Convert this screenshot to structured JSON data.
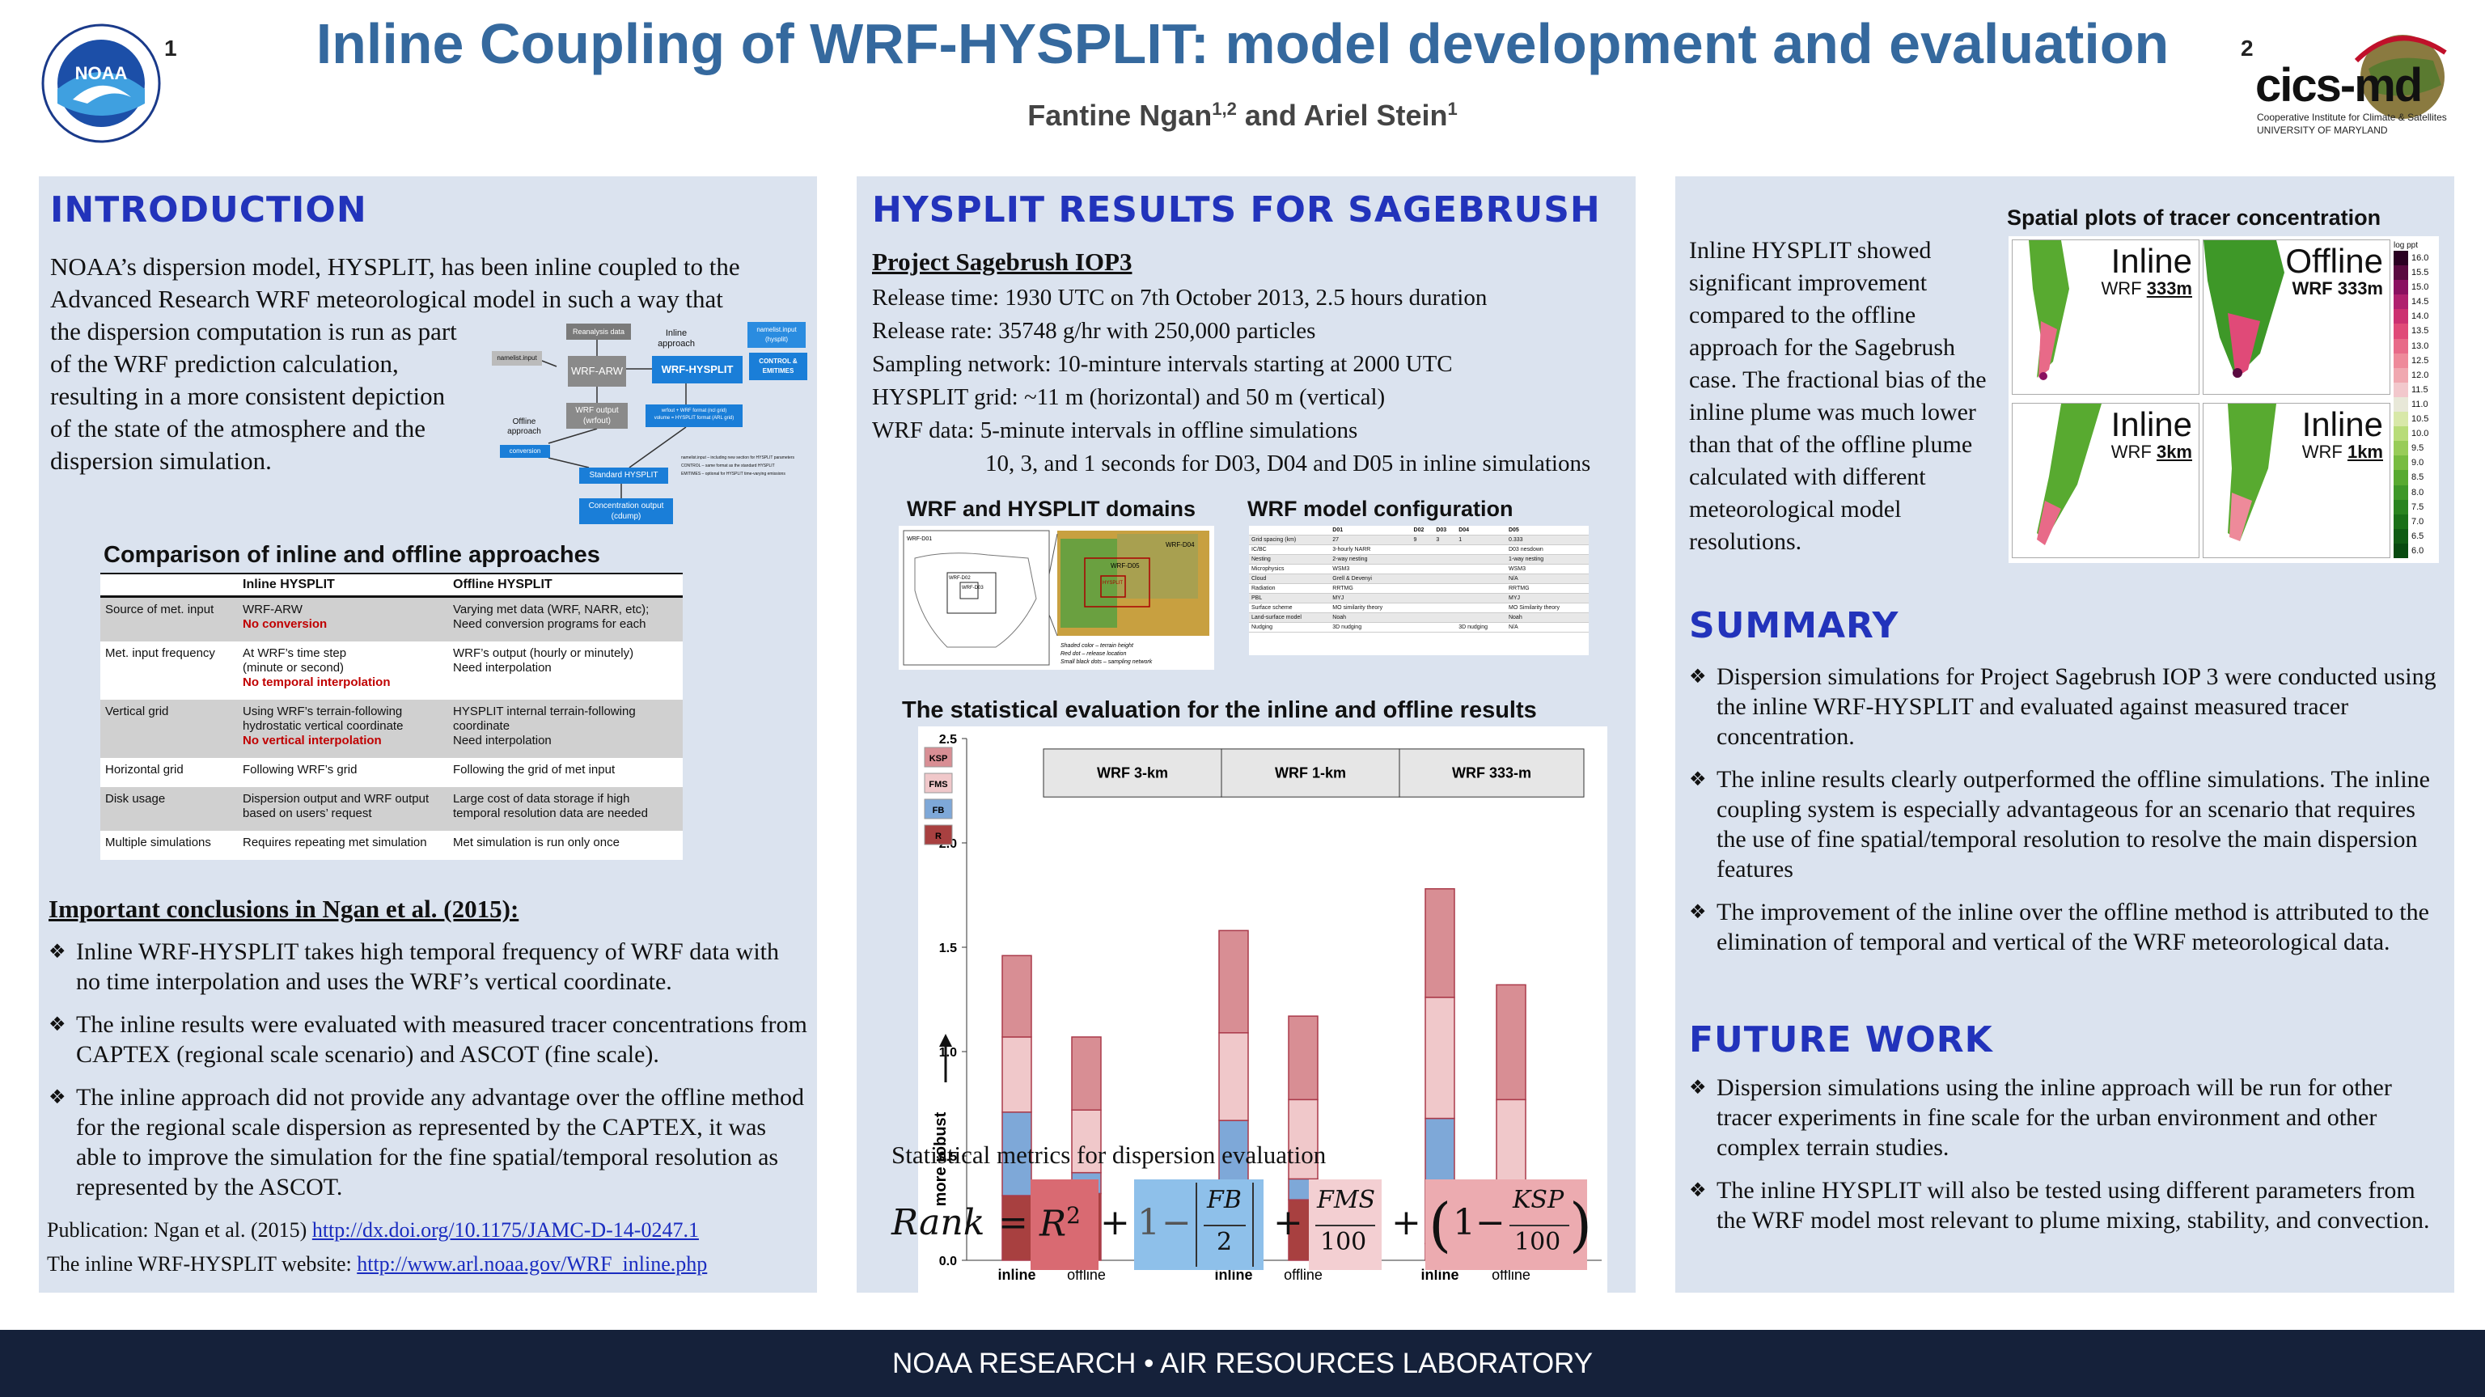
{
  "header": {
    "title": "Inline Coupling of WRF-HYSPLIT: model development and evaluation",
    "author1": "Fantine Ngan",
    "author1_sup": "1,2",
    "and": " and ",
    "author2": "Ariel Stein",
    "author2_sup": "1",
    "aff_left": "1",
    "aff_right": "2",
    "noaa_logo_text": "NOAA",
    "noaa_ring_text": "NATIONAL OCEANIC AND ATMOSPHERIC ADMINISTRATION · U.S. DEPARTMENT OF COMMERCE",
    "cics_name": "cics-md",
    "cics_line1": "Cooperative Institute for Climate & Satellites",
    "cics_line2": "UNIVERSITY OF MARYLAND"
  },
  "intro": {
    "heading": "INTRODUCTION",
    "para_full": "NOAA’s dispersion model, HYSPLIT, has been inline coupled to the Advanced Research WRF meteorological model in such a way that",
    "para_l1": "the dispersion computation is run as part",
    "para_l2": "of the WRF prediction calculation,",
    "para_l3": "resulting in a more consistent depiction",
    "para_l4": "of the state of the atmosphere and the",
    "para_l5": "dispersion simulation.",
    "diagram": {
      "reanalysis": "Reanalysis data",
      "namelist": "namelist.input",
      "wrf_arw": "WRF-ARW",
      "inline_label": "Inline\napproach",
      "namelist_hysplit": "namelist.input\n(hysplit)",
      "wrf_hysplit": "WRF-HYSPLIT",
      "control_emit": "CONTROL &\nEMITIMES",
      "wrf_output": "WRF output\n(wrfout)",
      "offline_label": "Offline\napproach",
      "conversion": "conversion",
      "arlout": "wrfout + WRF format (ncl grid)\nvolume = HYSPLIT format (ARL grid)",
      "standard": "Standard HYSPLIT",
      "concentration": "Concentration output\n(cdump)",
      "note1": "namelist.input – including new section for HYSPLIT parameters",
      "note2": "CONTROL – same format as the standard HYSPLIT",
      "note3": "EMITIMES – optional for HYSPLIT time-varying emissions"
    },
    "table_title": "Comparison of inline and offline approaches",
    "table_headers": [
      "",
      "Inline HYSPLIT",
      "Offline HYSPLIT"
    ],
    "table_rows": [
      {
        "k": "Source of met. input",
        "i1": "WRF-ARW",
        "i2": "No conversion",
        "o1": "Varying met data (WRF, NARR, etc);",
        "o2": "Need conversion programs for each"
      },
      {
        "k": "Met. input frequency",
        "i1": "At WRF’s time step",
        "i1b": "(minute or second)",
        "i2": "No temporal interpolation",
        "o1": "WRF’s output (hourly or minutely)",
        "o2": "Need interpolation"
      },
      {
        "k": "Vertical grid",
        "i1": "Using WRF’s terrain-following",
        "i1b": "hydrostatic vertical coordinate",
        "i2": "No vertical interpolation",
        "o1": "HYSPLIT internal terrain-following",
        "o1b": "coordinate",
        "o2": "Need interpolation"
      },
      {
        "k": "Horizontal grid",
        "i1": "Following WRF’s grid",
        "o1": "Following the grid of met input"
      },
      {
        "k": "Disk usage",
        "i1": "Dispersion output and WRF output",
        "i1b": "based on users’ request",
        "o1": "Large cost of data storage if high",
        "o1b": "temporal resolution data are needed"
      },
      {
        "k": "Multiple simulations",
        "i1": "Requires repeating met simulation",
        "o1": "Met simulation is run only once"
      }
    ],
    "conclusions_title": "Important conclusions in Ngan et al. (2015):",
    "conclusions": [
      "Inline WRF-HYSPLIT takes high temporal frequency of WRF data with no time interpolation and uses the WRF’s vertical coordinate.",
      "The inline results were evaluated with measured tracer concentrations from CAPTEX (regional scale scenario) and ASCOT (fine scale).",
      "The inline approach did not provide any advantage over the offline method for the regional scale dispersion as represented by the CAPTEX, it was able to improve the simulation for the fine spatial/temporal resolution as represented by the ASCOT."
    ],
    "pub_label": "Publication: Ngan et al. (2015) ",
    "pub_link": "http://dx.doi.org/10.1175/JAMC-D-14-0247.1",
    "web_label": "The inline WRF-HYSPLIT  website: ",
    "web_link": "http://www.arl.noaa.gov/WRF_inline.php"
  },
  "results": {
    "heading": "HYSPLIT RESULTS FOR SAGEBRUSH",
    "project": "Project Sagebrush IOP3",
    "lines": [
      "Release time: 1930 UTC on 7th October 2013, 2.5 hours duration",
      "Release rate: 35748 g/hr with 250,000 particles",
      "Sampling network: 10-minture intervals starting at 2000 UTC",
      "HYSPLIT grid: ~11 m (horizontal) and 50 m (vertical)",
      "WRF data: 5-minute intervals in offline simulations",
      "10, 3, and 1 seconds for D03, D04 and D05 in inline simulations"
    ],
    "domains_title": "WRF and HYSPLIT domains",
    "config_title": "WRF model configuration",
    "domain_labels": {
      "d01": "WRF-D01",
      "d02": "WRF-D02",
      "d03": "WRF-D03",
      "d04": "WRF-D04",
      "d05": "WRF-D05",
      "hys": "HYSPLIT"
    },
    "domain_legend": [
      "Shaded color – terrain height",
      "Red dot – release location",
      "Small black dots – sampling network"
    ],
    "config_headers": [
      "",
      "D01",
      "D02",
      "D03",
      "D04",
      "D05"
    ],
    "config_rows": [
      [
        "Grid spacing (km)",
        "27",
        "9",
        "3",
        "1",
        "0.333"
      ],
      [
        "IC/BC",
        "3-hourly NARR",
        "",
        "",
        "",
        "D03 nesdown"
      ],
      [
        "Nesting",
        "2-way nesting",
        "",
        "",
        "",
        "1-way nesting"
      ],
      [
        "Microphysics",
        "WSM3",
        "",
        "",
        "",
        "WSM3"
      ],
      [
        "Cloud",
        "Grell & Devenyi",
        "",
        "",
        "",
        "N/A"
      ],
      [
        "Radiation",
        "RRTMG",
        "",
        "",
        "",
        "RRTMG"
      ],
      [
        "PBL",
        "MYJ",
        "",
        "",
        "",
        "MYJ"
      ],
      [
        "Surface scheme",
        "MO similarity theory",
        "",
        "",
        "",
        "MO Similarity theory"
      ],
      [
        "Land-surface model",
        "Noah",
        "",
        "",
        "",
        "Noah"
      ],
      [
        "Nudging",
        "3D nudging",
        "",
        "",
        "3D nudging",
        "N/A"
      ]
    ],
    "stat_title": "The statistical evaluation for the inline and offline results",
    "metrics_title": "Statistical metrics for dispersion evaluation",
    "formula": {
      "rank": "Rank",
      "eq": "=",
      "r2": "R",
      "r2sup": "2",
      "plus": "+",
      "one": "1",
      "minus": "−",
      "fb": "FB",
      "two": "2",
      "fms": "FMS",
      "hundred": "100",
      "ksp": "KSP",
      "lparen": "(",
      "rparen": ")"
    }
  },
  "chart_data": {
    "type": "bar",
    "stacked": true,
    "groups": [
      "WRF 3-km",
      "WRF 1-km",
      "WRF 333-m"
    ],
    "categories": [
      "inline",
      "offline",
      "inline",
      "offline",
      "inline",
      "offline"
    ],
    "ylim": [
      0,
      2.5
    ],
    "yticks": [
      "0.0",
      "0.5",
      "1.0",
      "1.5",
      "2.0",
      "2.5"
    ],
    "ylabel": "more robust",
    "series": [
      {
        "name": "R",
        "color": "#a84040",
        "values": [
          0.31,
          0.32,
          0.23,
          0.29,
          0.08,
          0.15
        ]
      },
      {
        "name": "FB",
        "color": "#7ea8d8",
        "values": [
          0.4,
          0.1,
          0.44,
          0.1,
          0.6,
          0.14
        ]
      },
      {
        "name": "FMS",
        "color": "#f0c8ca",
        "values": [
          0.36,
          0.3,
          0.42,
          0.38,
          0.58,
          0.48
        ]
      },
      {
        "name": "KSP",
        "color": "#d88e94",
        "values": [
          0.39,
          0.35,
          0.49,
          0.4,
          0.52,
          0.55
        ]
      }
    ]
  },
  "spatial": {
    "title": "Spatial plots of tracer concentration",
    "panels": [
      {
        "name": "Inline",
        "sub": "WRF ",
        "res": "333m",
        "bold": false
      },
      {
        "name": "Offline",
        "sub": "WRF ",
        "res": "333m",
        "bold": true
      },
      {
        "name": "Inline",
        "sub": "WRF ",
        "res": "3km",
        "bold": false
      },
      {
        "name": "Inline",
        "sub": "WRF ",
        "res": "1km",
        "bold": false
      }
    ],
    "scale_label": "log ppt",
    "scale_values": [
      "16.0",
      "15.5",
      "15.0",
      "14.5",
      "14.0",
      "13.5",
      "13.0",
      "12.5",
      "12.0",
      "11.5",
      "11.0",
      "10.5",
      "10.0",
      "9.5",
      "9.0",
      "8.5",
      "8.0",
      "7.5",
      "7.0",
      "6.5",
      "6.0"
    ],
    "scale_colors": [
      "#2b0022",
      "#5a0a40",
      "#8a1060",
      "#b0206e",
      "#cc3070",
      "#e04a78",
      "#e86a88",
      "#ee8a9a",
      "#f0a8b0",
      "#f2c8cc",
      "#e8e8d8",
      "#d8e8a8",
      "#b8dc78",
      "#98cc58",
      "#78bc40",
      "#58aa30",
      "#3e9828",
      "#2a8420",
      "#1a7018",
      "#105c14",
      "#084a10"
    ],
    "text": "Inline HYSPLIT showed significant improvement compared to the offline approach for the Sagebrush case. The fractional bias of the inline plume was much lower than that of the offline plume calculated with different meteorological model resolutions."
  },
  "summary": {
    "heading": "SUMMARY",
    "items": [
      "Dispersion simulations for Project Sagebrush IOP 3 were conducted using the inline WRF-HYSPLIT and evaluated against measured tracer concentration.",
      "The inline results clearly outperformed the offline simulations. The inline coupling system is especially advantageous for an scenario that requires the use of fine spatial/temporal resolution to resolve the main dispersion features",
      "The improvement of the inline over the offline method is attributed to the elimination of temporal and vertical of the WRF meteorological data."
    ]
  },
  "future": {
    "heading": "FUTURE WORK",
    "items": [
      "Dispersion simulations using the inline approach will be run for other tracer experiments in fine scale for the urban environment and other complex terrain studies.",
      "The inline HYSPLIT will also be tested using different parameters from the WRF model most relevant to plume mixing, stability, and convection."
    ]
  },
  "footer": {
    "text": "NOAA RESEARCH  •  AIR RESOURCES LABORATORY"
  }
}
